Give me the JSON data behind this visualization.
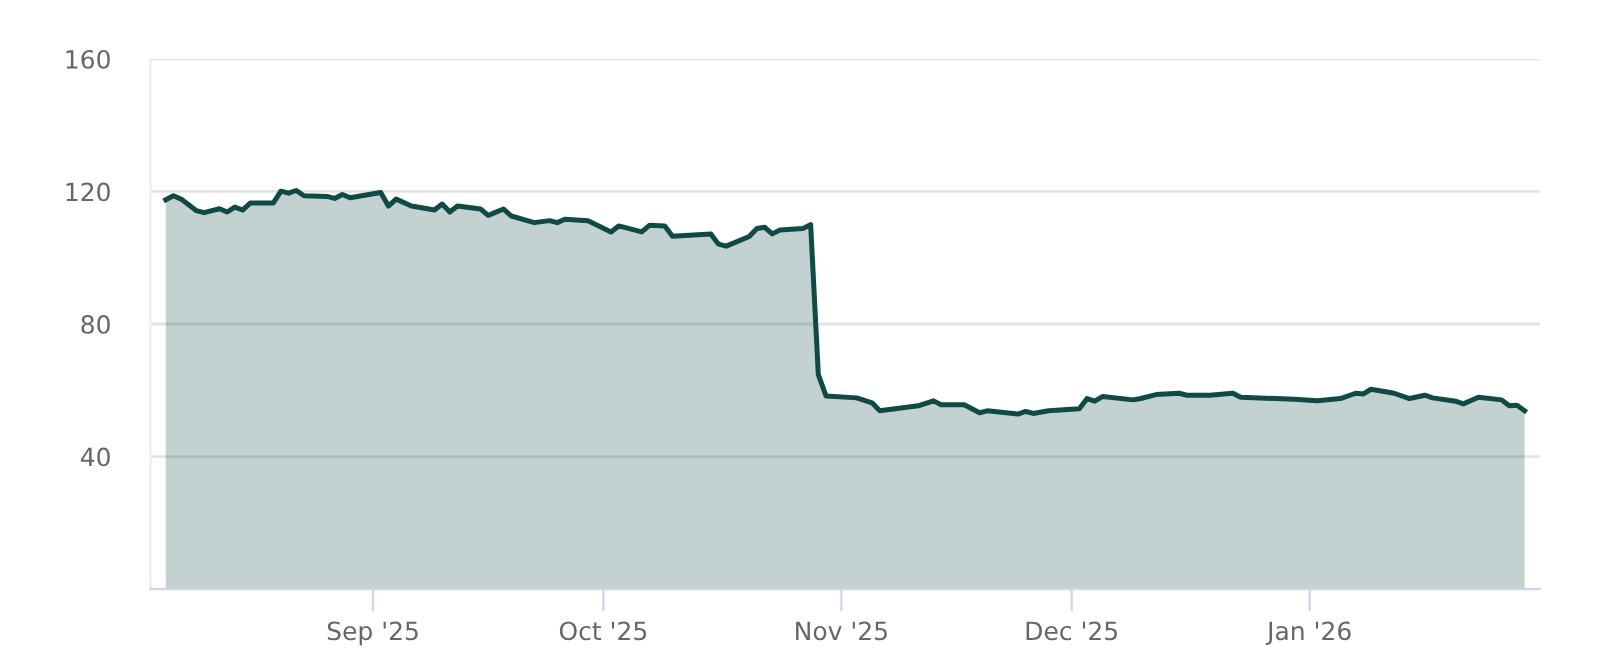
{
  "chart_data": {
    "type": "area",
    "x": [
      "2025-08-05",
      "2025-08-06",
      "2025-08-07",
      "2025-08-09",
      "2025-08-10",
      "2025-08-12",
      "2025-08-13",
      "2025-08-14",
      "2025-08-15",
      "2025-08-16",
      "2025-08-19",
      "2025-08-20",
      "2025-08-21",
      "2025-08-22",
      "2025-08-23",
      "2025-08-26",
      "2025-08-27",
      "2025-08-28",
      "2025-08-29",
      "2025-09-02",
      "2025-09-03",
      "2025-09-04",
      "2025-09-06",
      "2025-09-09",
      "2025-09-10",
      "2025-09-11",
      "2025-09-12",
      "2025-09-15",
      "2025-09-16",
      "2025-09-18",
      "2025-09-19",
      "2025-09-22",
      "2025-09-24",
      "2025-09-25",
      "2025-09-26",
      "2025-09-29",
      "2025-10-02",
      "2025-10-03",
      "2025-10-06",
      "2025-10-07",
      "2025-10-09",
      "2025-10-10",
      "2025-10-15",
      "2025-10-16",
      "2025-10-17",
      "2025-10-20",
      "2025-10-21",
      "2025-10-22",
      "2025-10-23",
      "2025-10-24",
      "2025-10-27",
      "2025-10-28",
      "2025-10-29",
      "2025-10-30",
      "2025-11-03",
      "2025-11-05",
      "2025-11-06",
      "2025-11-11",
      "2025-11-13",
      "2025-11-14",
      "2025-11-17",
      "2025-11-19",
      "2025-11-20",
      "2025-11-24",
      "2025-11-25",
      "2025-11-26",
      "2025-11-28",
      "2025-12-02",
      "2025-12-03",
      "2025-12-04",
      "2025-12-05",
      "2025-12-09",
      "2025-12-10",
      "2025-12-12",
      "2025-12-15",
      "2025-12-16",
      "2025-12-19",
      "2025-12-22",
      "2025-12-23",
      "2025-12-30",
      "2026-01-02",
      "2026-01-05",
      "2026-01-07",
      "2026-01-08",
      "2026-01-09",
      "2026-01-12",
      "2026-01-14",
      "2026-01-16",
      "2026-01-17",
      "2026-01-20",
      "2026-01-21",
      "2026-01-23",
      "2026-01-26",
      "2026-01-27",
      "2026-01-28",
      "2026-01-29"
    ],
    "series": [
      {
        "color": "#0f4a44",
        "values": [
          117.5,
          118.7,
          117.7,
          114.2,
          113.6,
          114.8,
          113.8,
          115.3,
          114.4,
          116.5,
          116.5,
          120.1,
          119.5,
          120.3,
          118.7,
          118.5,
          117.9,
          119.1,
          118.1,
          119.7,
          115.6,
          117.7,
          115.6,
          114.4,
          116.2,
          113.8,
          115.6,
          114.7,
          112.8,
          114.7,
          112.6,
          110.6,
          111.2,
          110.6,
          111.6,
          111.2,
          107.8,
          109.6,
          107.8,
          109.8,
          109.6,
          106.5,
          107.2,
          104.1,
          103.5,
          106.4,
          108.8,
          109.2,
          107.2,
          108.4,
          108.8,
          110.0,
          64.7,
          58.3,
          57.7,
          56.2,
          53.8,
          55.3,
          56.8,
          55.6,
          55.6,
          53.2,
          53.8,
          52.8,
          53.6,
          53.0,
          53.8,
          54.4,
          57.5,
          56.7,
          58.1,
          57.1,
          57.5,
          58.7,
          59.1,
          58.5,
          58.5,
          59.1,
          57.9,
          57.3,
          56.8,
          57.5,
          59.1,
          58.9,
          60.3,
          59.1,
          57.5,
          58.5,
          57.7,
          56.7,
          55.9,
          57.9,
          57.1,
          55.3,
          55.5,
          53.8
        ]
      }
    ],
    "xlim": [
      "2025-08-03",
      "2026-01-31"
    ],
    "xticks": [
      {
        "value": "2025-09-01",
        "label": "Sep '25"
      },
      {
        "value": "2025-10-01",
        "label": "Oct '25"
      },
      {
        "value": "2025-11-01",
        "label": "Nov '25"
      },
      {
        "value": "2025-12-01",
        "label": "Dec '25"
      },
      {
        "value": "2026-01-01",
        "label": "Jan '26"
      }
    ],
    "ylim": [
      0,
      160
    ],
    "yticks": [
      40,
      80,
      120,
      160
    ],
    "grid": "y"
  }
}
